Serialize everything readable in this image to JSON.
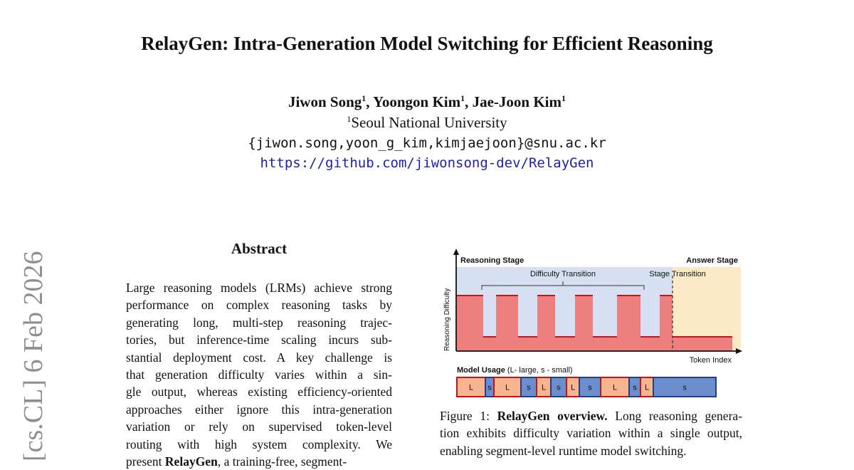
{
  "paper": {
    "title": "RelayGen: Intra-Generation Model Switching for Efficient Reasoning",
    "authors": [
      {
        "name": "Jiwon Song",
        "sup": "1"
      },
      {
        "name": "Yoongon Kim",
        "sup": "1"
      },
      {
        "name": "Jae-Joon Kim",
        "sup": "1"
      }
    ],
    "affiliation": {
      "sup": "1",
      "name": "Seoul National University"
    },
    "email": "{jiwon.song,yoon_g_kim,kimjaejoon}@snu.ac.kr",
    "url": "https://github.com/jiwonsong-dev/RelayGen",
    "arxiv_side": "[cs.CL]  6 Feb 2026"
  },
  "abstract": {
    "heading": "Abstract",
    "lines": [
      "Large reasoning models (LRMs) achieve strong",
      "performance on complex reasoning tasks by",
      "generating long, multi-step reasoning trajec-",
      "tories, but inference-time scaling incurs sub-",
      "stantial deployment cost.  A key challenge is",
      "that generation difficulty varies within a sin-",
      "gle output, whereas existing efficiency-oriented",
      "approaches either ignore this intra-generation",
      "variation or rely on supervised token-level",
      "routing with high system complexity.   We"
    ],
    "last_line_parts": [
      "present ",
      "RelayGen",
      ", a training-free, segment-"
    ]
  },
  "figure": {
    "reasoning_stage_label": "Reasoning Stage",
    "answer_stage_label": "Answer Stage",
    "difficulty_transition_label": "Difficulty Transition",
    "stage_transition_label": "Stage Transition",
    "y_axis_label": "Reasoning Difficulty",
    "x_axis_label": "Token Index",
    "usage_title": "Model Usage",
    "usage_note": " (L- large, s - small)",
    "usage_blocks": [
      "L",
      "s",
      "L",
      "s",
      "L",
      "s",
      "L",
      "s",
      "L",
      "s",
      "L",
      "s"
    ],
    "colors": {
      "large": "#f6b48f",
      "small": "#6c8ecd",
      "large_border": "#cc1111",
      "small_border": "#1f3f8c",
      "curve_fill": "#ee7f7f",
      "curve_line": "#c0151b",
      "reasoning_bg": "#d6e0f2",
      "answer_bg": "#fce9c6"
    }
  },
  "caption": {
    "label": "Figure 1: ",
    "bold": "RelayGen overview.",
    "line1_rest": " Long reasoning genera-",
    "line2": "tion exhibits difficulty variation within a single output,",
    "line3": "enabling segment-level runtime model switching."
  }
}
